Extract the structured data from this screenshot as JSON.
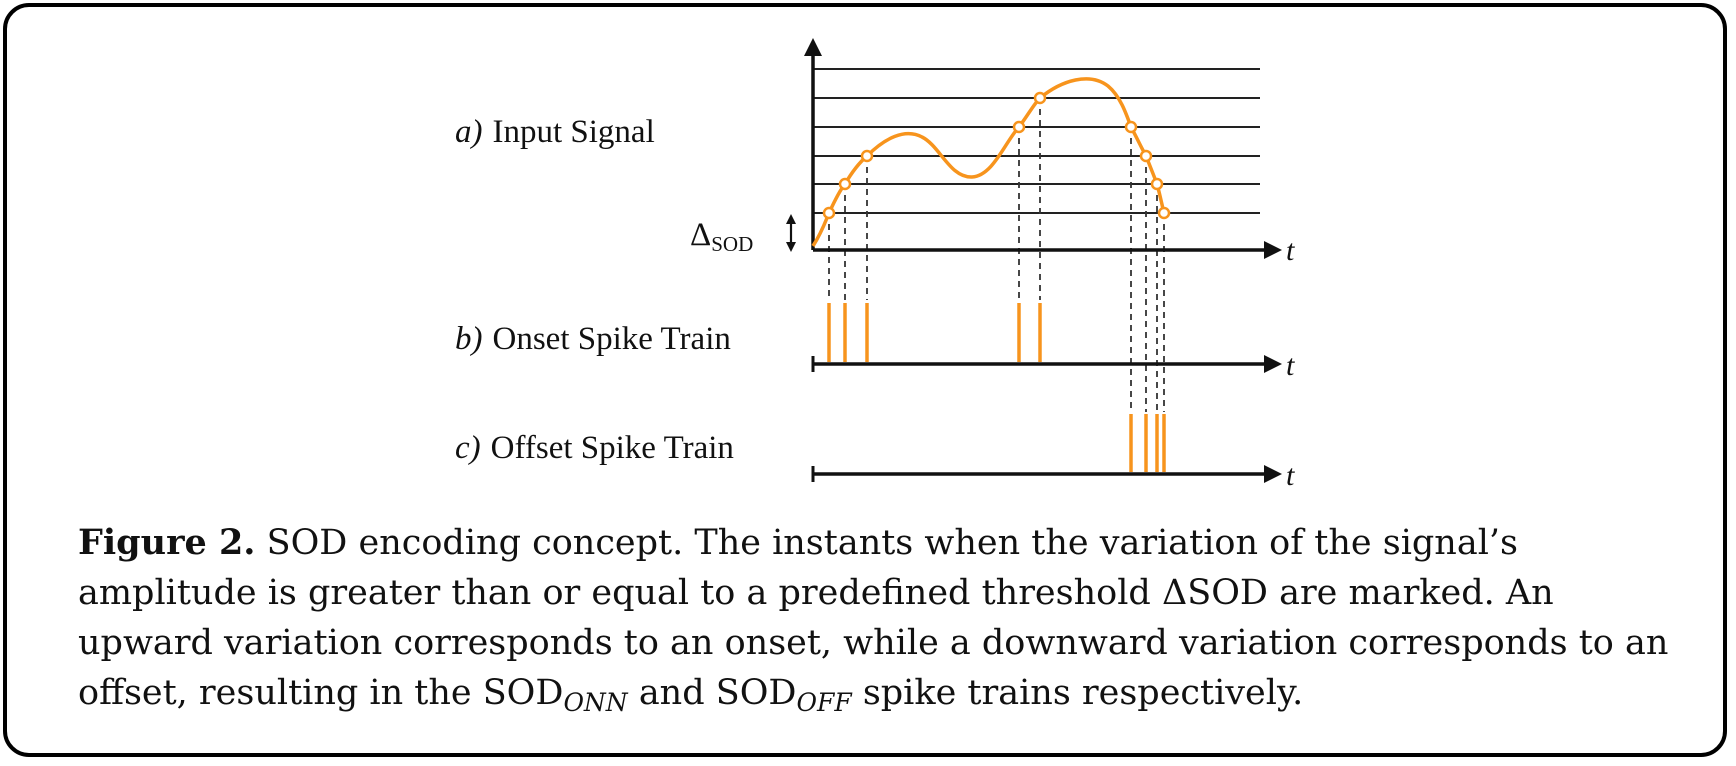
{
  "diagram": {
    "panel_a": {
      "letter": "a)",
      "title": "Input Signal"
    },
    "panel_b": {
      "letter": "b)",
      "title": "Onset Spike Train"
    },
    "panel_c": {
      "letter": "c)",
      "title": "Offset Spike Train"
    },
    "delta_label": "Δ",
    "delta_sub": "SOD",
    "time_axis_label": "t",
    "threshold_level_count": 6,
    "onset_crossing_count": 5,
    "offset_crossing_count": 4,
    "colors": {
      "signal": "#f7941d",
      "axis": "#111111",
      "grid": "#222222",
      "background": "#ffffff"
    }
  },
  "caption": {
    "figure_label": "Figure 2.",
    "part1": "SOD encoding concept. The instants when the variation of the signal’s amplitude is greater than or equal to a predefined threshold ΔSOD are marked. An upward variation corresponds to an onset, while a downward variation corresponds to an offset, resulting in the SOD",
    "sub_on": "ONN",
    "part2": " and SOD",
    "sub_off": "OFF",
    "part3": " spike trains respectively."
  }
}
